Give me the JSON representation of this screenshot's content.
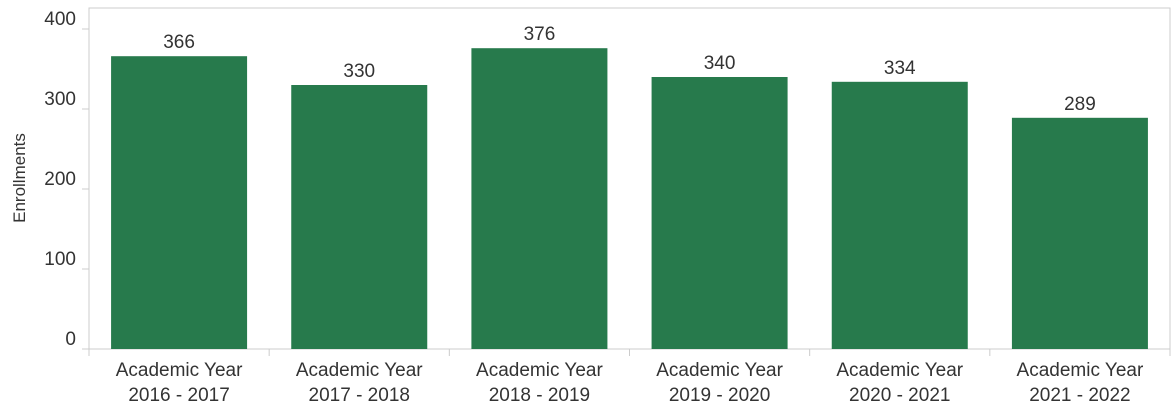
{
  "chart_data": {
    "type": "bar",
    "categories": [
      [
        "Academic Year",
        "2016 - 2017"
      ],
      [
        "Academic Year",
        "2017 - 2018"
      ],
      [
        "Academic Year",
        "2018 - 2019"
      ],
      [
        "Academic Year",
        "2019 - 2020"
      ],
      [
        "Academic Year",
        "2020 - 2021"
      ],
      [
        "Academic Year",
        "2021 - 2022"
      ]
    ],
    "values": [
      366,
      330,
      376,
      340,
      334,
      289
    ],
    "ylabel": "Enrollments",
    "xlabel": "",
    "ylim": [
      0,
      400
    ],
    "yticks": [
      0,
      100,
      200,
      300,
      400
    ],
    "grid": false,
    "legend": "none",
    "bar_color": "#277a4c",
    "frame_color": "#cccccc"
  }
}
